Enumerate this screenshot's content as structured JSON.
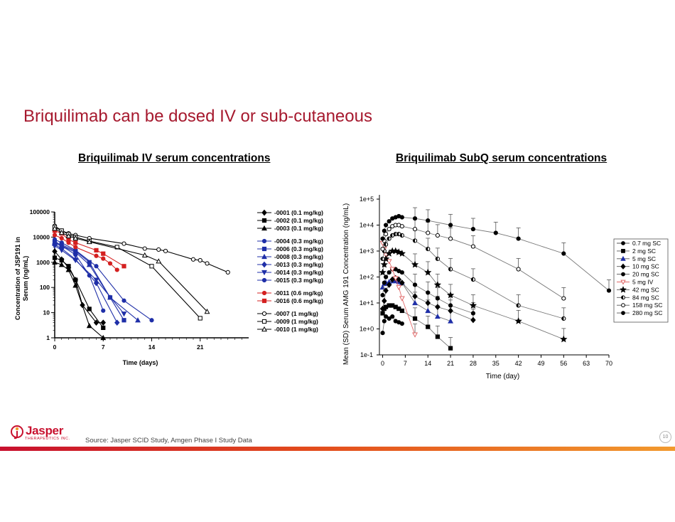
{
  "slide": {
    "title": "Briquilimab can be dosed IV or sub-cutaneous",
    "source": "Source: Jasper SCID Study, Amgen Phase I Study Data",
    "page_number": "10",
    "logo": {
      "name": "Jasper",
      "subtitle": "THERAPEUTICS INC."
    }
  },
  "colors": {
    "title": "#a6192e",
    "black": "#000000",
    "blue": "#1f2fa8",
    "red": "#d42020",
    "pink": "#e06a6a",
    "gray_line": "#777777"
  },
  "chart_data": [
    {
      "type": "line",
      "heading": "Briquilimab IV serum concentrations",
      "xlabel": "Time (days)",
      "ylabel": "Concentration of JSP191 in Serum (ng/mL)",
      "xlim": [
        0,
        28
      ],
      "ylim": [
        1,
        100000
      ],
      "yscale": "log",
      "x_ticks": [
        0,
        7,
        14,
        21
      ],
      "y_ticks": [
        1,
        10,
        100,
        1000,
        10000,
        100000
      ],
      "y_tick_labels": [
        "1",
        "10",
        "100",
        "1000",
        "10000",
        "100000"
      ],
      "legend_position": "right",
      "series": [
        {
          "name": "-0001 (0.1 mg/kg)",
          "color": "#000000",
          "marker": "diamond",
          "filled": true,
          "x": [
            0,
            1,
            2,
            3,
            4,
            6,
            7
          ],
          "y": [
            2700,
            1300,
            600,
            200,
            20,
            4,
            4
          ]
        },
        {
          "name": "-0002 (0.1 mg/kg)",
          "color": "#000000",
          "marker": "square",
          "filled": true,
          "x": [
            0,
            1,
            2,
            3,
            5,
            7
          ],
          "y": [
            1500,
            1200,
            700,
            200,
            14,
            2.5
          ]
        },
        {
          "name": "-0003 (0.1 mg/kg)",
          "color": "#000000",
          "marker": "triangle",
          "filled": true,
          "x": [
            0,
            1,
            2,
            3,
            5,
            7
          ],
          "y": [
            1000,
            800,
            500,
            120,
            3,
            1
          ]
        },
        {
          "name": "-0004 (0.3 mg/kg)",
          "color": "#1f2fa8",
          "marker": "circle",
          "filled": true,
          "x": [
            0,
            1,
            3,
            5,
            7
          ],
          "y": [
            7000,
            4500,
            2000,
            300,
            12
          ]
        },
        {
          "name": "-0006 (0.3 mg/kg)",
          "color": "#1f2fa8",
          "marker": "square",
          "filled": true,
          "x": [
            0,
            1,
            3,
            5,
            8,
            10
          ],
          "y": [
            6000,
            5000,
            2800,
            1000,
            40,
            5
          ]
        },
        {
          "name": "-0008 (0.3 mg/kg)",
          "color": "#1f2fa8",
          "marker": "triangle",
          "filled": true,
          "x": [
            0,
            1,
            3,
            5,
            8,
            12
          ],
          "y": [
            5500,
            4500,
            2500,
            800,
            40,
            5
          ]
        },
        {
          "name": "-0013 (0.3 mg/kg)",
          "color": "#1f2fa8",
          "marker": "diamond",
          "filled": true,
          "x": [
            0,
            1,
            3,
            6,
            9
          ],
          "y": [
            5000,
            3500,
            1300,
            150,
            4
          ]
        },
        {
          "name": "-0014 (0.3 mg/kg)",
          "color": "#1f2fa8",
          "marker": "triangle-down",
          "filled": true,
          "x": [
            0,
            1,
            3,
            6,
            10
          ],
          "y": [
            4500,
            3000,
            1200,
            200,
            9
          ]
        },
        {
          "name": "-0015 (0.3 mg/kg)",
          "color": "#1f2fa8",
          "marker": "circle",
          "filled": true,
          "x": [
            0,
            1,
            3,
            6,
            10,
            14
          ],
          "y": [
            8000,
            6000,
            3000,
            700,
            30,
            5
          ]
        },
        {
          "name": "-0011 (0.6 mg/kg)",
          "color": "#d42020",
          "marker": "circle",
          "filled": true,
          "x": [
            0,
            1,
            2,
            3,
            6,
            7,
            8,
            9
          ],
          "y": [
            12000,
            9000,
            6000,
            4000,
            1800,
            1400,
            900,
            500
          ]
        },
        {
          "name": "-0016 (0.6 mg/kg)",
          "color": "#d42020",
          "marker": "square",
          "filled": true,
          "x": [
            0,
            1,
            2,
            3,
            6,
            7,
            10
          ],
          "y": [
            18000,
            14000,
            8000,
            6000,
            3000,
            2200,
            700
          ]
        },
        {
          "name": "-0007 (1 mg/kg)",
          "color": "#000000",
          "marker": "circle",
          "filled": false,
          "x": [
            0,
            1,
            2,
            3,
            5,
            10,
            13,
            15,
            16,
            20,
            21,
            22,
            25
          ],
          "y": [
            28000,
            18000,
            14000,
            12000,
            9000,
            5500,
            3500,
            3200,
            2800,
            1300,
            1200,
            900,
            400
          ]
        },
        {
          "name": "-0009 (1 mg/kg)",
          "color": "#000000",
          "marker": "square",
          "filled": false,
          "x": [
            0,
            1,
            2,
            3,
            5,
            9,
            14,
            21
          ],
          "y": [
            25000,
            18000,
            13000,
            10000,
            7000,
            4000,
            700,
            6
          ]
        },
        {
          "name": "-0010 (1 mg/kg)",
          "color": "#000000",
          "marker": "triangle",
          "filled": false,
          "x": [
            0,
            1,
            2,
            3,
            5,
            13,
            15,
            22
          ],
          "y": [
            22000,
            15000,
            11000,
            9000,
            6500,
            1900,
            1100,
            11
          ]
        }
      ]
    },
    {
      "type": "line",
      "heading": "Briquilimab SubQ serum concentrations",
      "xlabel": "Time (day)",
      "ylabel": "Mean (SD) Serum AMG 191 Concentration (ng/mL)",
      "xlim": [
        -1,
        70
      ],
      "ylim": [
        0.1,
        100000
      ],
      "yscale": "log",
      "x_ticks": [
        0,
        7,
        14,
        21,
        28,
        35,
        42,
        49,
        56,
        63,
        70
      ],
      "y_ticks": [
        0.1,
        1,
        10,
        100,
        1000,
        10000,
        100000
      ],
      "y_tick_labels": [
        "1e-1",
        "1e+0",
        "1e+1",
        "1e+2",
        "1e+3",
        "1e+4",
        "1e+5"
      ],
      "legend_position": "right",
      "series": [
        {
          "name": "0.7 mg SC",
          "color": "#000000",
          "marker": "circle",
          "filled": true,
          "x": [
            0,
            0.5,
            1,
            2,
            3,
            4,
            5,
            6
          ],
          "y": [
            0.7,
            2,
            3,
            2.5,
            3,
            2,
            1.8,
            1.6
          ]
        },
        {
          "name": "2 mg SC",
          "color": "#000000",
          "marker": "square",
          "filled": true,
          "x": [
            0,
            0.5,
            1,
            2,
            3,
            4,
            5,
            6,
            10,
            14,
            17,
            21
          ],
          "y": [
            4,
            6,
            7,
            8,
            8,
            7,
            6,
            5,
            2.5,
            1.2,
            0.5,
            0.18
          ]
        },
        {
          "name": "5 mg SC",
          "color": "#1f2fa8",
          "marker": "triangle",
          "filled": true,
          "x": [
            0,
            0.5,
            1,
            2,
            3,
            4,
            5,
            6,
            10,
            14,
            17,
            21
          ],
          "y": [
            40,
            55,
            60,
            65,
            70,
            70,
            65,
            60,
            10,
            5,
            3,
            2
          ]
        },
        {
          "name": "10 mg SC",
          "color": "#000000",
          "marker": "diamond",
          "filled": true,
          "x": [
            0,
            0.5,
            1,
            2,
            3,
            4,
            5,
            6,
            10,
            14,
            17,
            21,
            28
          ],
          "y": [
            6,
            12,
            30,
            50,
            80,
            90,
            80,
            60,
            18,
            10,
            7,
            5,
            2.2
          ]
        },
        {
          "name": "20 mg SC",
          "color": "#000000",
          "marker": "circle",
          "filled": true,
          "x": [
            0,
            0.5,
            1,
            2,
            3,
            4,
            5,
            6,
            10,
            14,
            17,
            21,
            28
          ],
          "y": [
            20,
            60,
            100,
            150,
            200,
            200,
            170,
            150,
            50,
            25,
            15,
            8,
            4
          ]
        },
        {
          "name": "5 mg IV",
          "color": "#e06a6a",
          "marker": "triangle-down",
          "filled": false,
          "x": [
            0,
            0.5,
            1,
            2,
            3,
            4,
            5,
            6,
            10
          ],
          "y": [
            2000,
            1200,
            700,
            400,
            200,
            90,
            40,
            15,
            0.6
          ]
        },
        {
          "name": "42 mg SC",
          "color": "#000000",
          "marker": "star",
          "filled": true,
          "x": [
            0,
            0.5,
            1,
            2,
            3,
            4,
            5,
            6,
            10,
            14,
            17,
            21,
            28,
            42,
            56
          ],
          "y": [
            150,
            300,
            500,
            800,
            1000,
            1000,
            900,
            800,
            300,
            150,
            50,
            20,
            8,
            2,
            0.4
          ]
        },
        {
          "name": "84 mg SC",
          "color": "#000000",
          "marker": "half-circle",
          "filled": true,
          "x": [
            0,
            0.5,
            1,
            2,
            3,
            4,
            5,
            6,
            10,
            14,
            17,
            21,
            28,
            42,
            56
          ],
          "y": [
            500,
            1000,
            1800,
            3000,
            4000,
            4500,
            4500,
            4000,
            2500,
            1200,
            500,
            200,
            80,
            8,
            2.5
          ]
        },
        {
          "name": "158 mg SC",
          "color": "#000000",
          "marker": "circle",
          "filled": false,
          "x": [
            0,
            0.5,
            1,
            2,
            3,
            4,
            5,
            6,
            10,
            14,
            17,
            21,
            28,
            42,
            56
          ],
          "y": [
            1200,
            2500,
            4500,
            7000,
            9000,
            10000,
            10000,
            9000,
            7000,
            5000,
            4000,
            3000,
            1500,
            200,
            15
          ]
        },
        {
          "name": "280 mg SC",
          "color": "#000000",
          "marker": "circle",
          "filled": true,
          "x": [
            0,
            0.5,
            1,
            2,
            3,
            4,
            5,
            6,
            10,
            14,
            21,
            28,
            35,
            42,
            56,
            70
          ],
          "y": [
            3000,
            6000,
            10000,
            14000,
            18000,
            20000,
            22000,
            20000,
            18000,
            15000,
            10000,
            7000,
            5000,
            3000,
            800,
            30
          ]
        }
      ]
    }
  ]
}
